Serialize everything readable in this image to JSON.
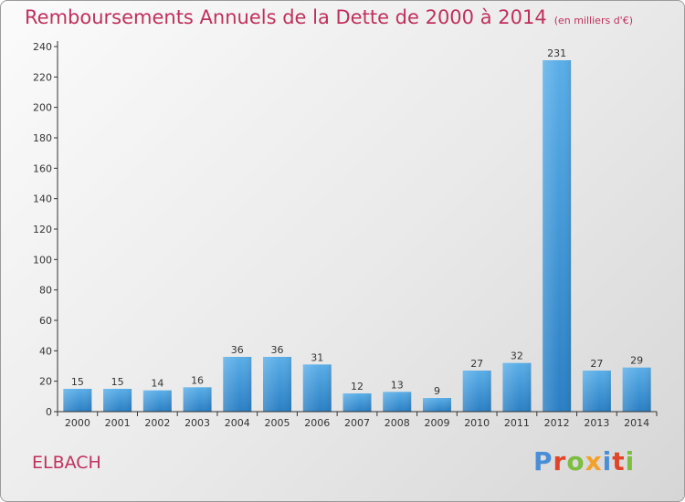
{
  "title": "Remboursements Annuels de la Dette de 2000 à 2014",
  "unit": "(en milliers d'€)",
  "commune": "ELBACH",
  "logo": {
    "text": "Proxiti",
    "colors": [
      "#4a8ed8",
      "#e0452b",
      "#7dbd3f",
      "#f2a22b",
      "#4a8ed8",
      "#e0452b",
      "#7dbd3f"
    ]
  },
  "colors": {
    "title": "#c0305e",
    "bar_top": "#5aaee8",
    "bar_bottom": "#2a7fc4",
    "axis": "#333333"
  },
  "chart_data": {
    "type": "bar",
    "title": "Remboursements Annuels de la Dette de 2000 à 2014",
    "categories": [
      "2000",
      "2001",
      "2002",
      "2003",
      "2004",
      "2005",
      "2006",
      "2007",
      "2008",
      "2009",
      "2010",
      "2011",
      "2012",
      "2013",
      "2014"
    ],
    "values": [
      15,
      15,
      14,
      16,
      36,
      36,
      31,
      12,
      13,
      9,
      27,
      32,
      231,
      27,
      29
    ],
    "ylim": [
      0,
      240
    ],
    "yticks": [
      0,
      20,
      40,
      60,
      80,
      100,
      120,
      140,
      160,
      180,
      200,
      220,
      240
    ],
    "xlabel": "",
    "ylabel": ""
  }
}
